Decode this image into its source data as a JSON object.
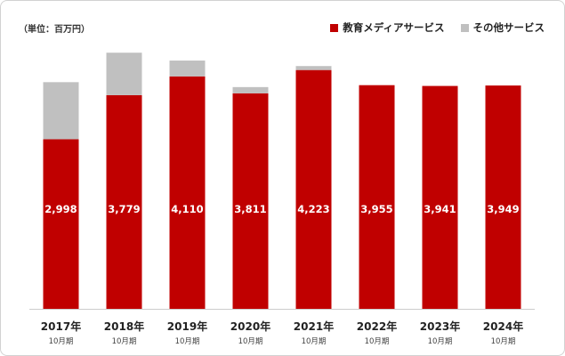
{
  "unit_label": "（単位：百万円）",
  "legend": [
    {
      "label": "教育メディアサービス",
      "color": "#c00000"
    },
    {
      "label": "その他サービス",
      "color": "#c0c0c0"
    }
  ],
  "chart_data": {
    "type": "bar",
    "stacked": true,
    "categories": [
      "2017年",
      "2018年",
      "2019年",
      "2020年",
      "2021年",
      "2022年",
      "2023年",
      "2024年"
    ],
    "category_sublabels": [
      "10月期",
      "10月期",
      "10月期",
      "10月期",
      "10月期",
      "10月期",
      "10月期",
      "10月期"
    ],
    "series": [
      {
        "name": "教育メディアサービス",
        "color": "#c00000",
        "values": [
          2998,
          3779,
          4110,
          3811,
          4223,
          3955,
          3941,
          3949
        ],
        "labels": [
          "2,998",
          "3,779",
          "4,110",
          "3,811",
          "4,223",
          "3,955",
          "3,941",
          "3,949"
        ]
      },
      {
        "name": "その他サービス",
        "color": "#c0c0c0",
        "values": [
          1010,
          750,
          280,
          110,
          70,
          0,
          0,
          0
        ]
      }
    ],
    "ylim": [
      0,
      4800
    ],
    "grid": false,
    "legend_position": "top-right"
  }
}
